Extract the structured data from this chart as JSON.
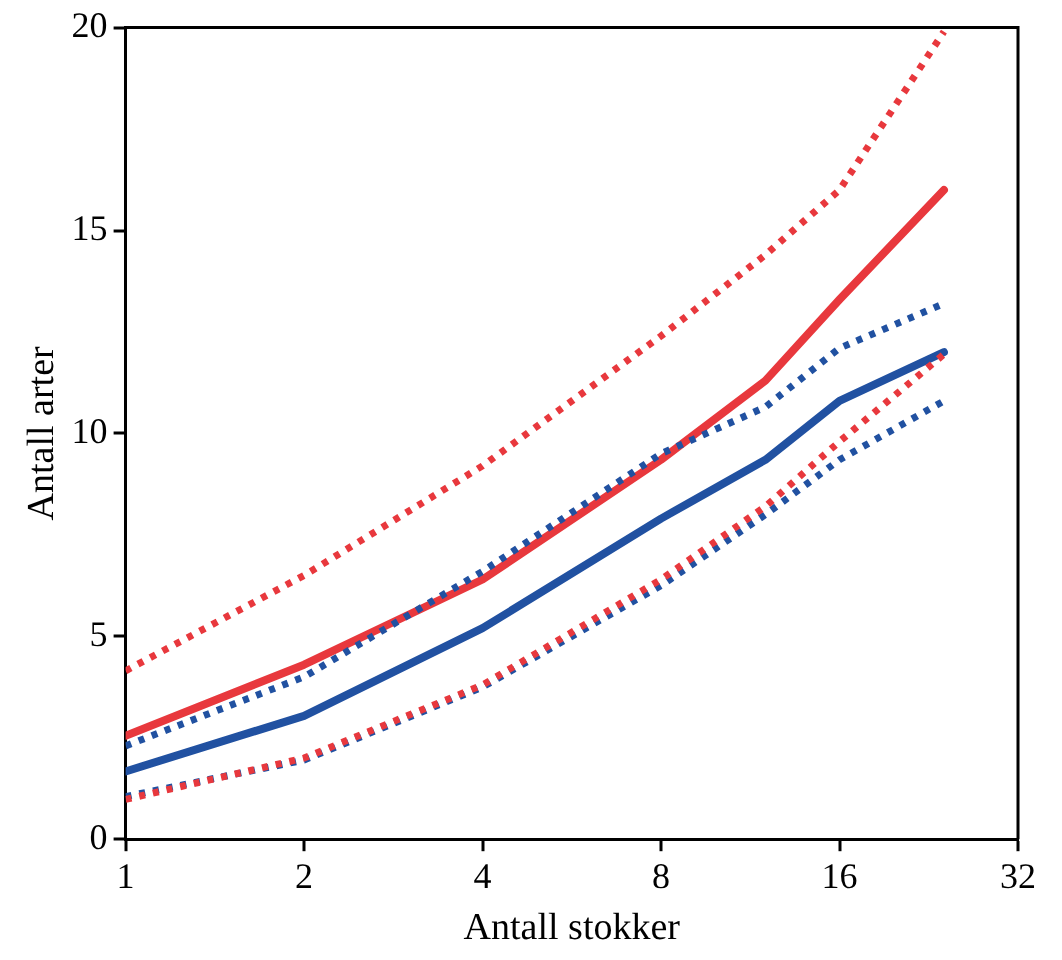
{
  "chart_data": {
    "type": "line",
    "xlabel": "Antall stokker",
    "ylabel": "Antall arter",
    "log": "x",
    "x": [
      1,
      2,
      4,
      8,
      12,
      16,
      24
    ],
    "series": [
      {
        "color": "#e8383d",
        "line_style": "dotted",
        "values": [
          4.15,
          6.5,
          9.2,
          12.4,
          14.4,
          16.0,
          19.9
        ]
      },
      {
        "color": "#2151a1",
        "line_style": "dotted",
        "values": [
          2.3,
          4.0,
          6.6,
          9.5,
          10.65,
          12.1,
          13.2
        ]
      },
      {
        "color": "#e8383d",
        "line_style": "dotted",
        "values": [
          0.98,
          2.0,
          3.8,
          6.4,
          8.2,
          9.8,
          11.95
        ]
      },
      {
        "color": "#2151a1",
        "line_style": "dotted",
        "values": [
          1.05,
          1.95,
          3.75,
          6.25,
          8.0,
          9.35,
          10.8
        ]
      },
      {
        "color": "#e8383d",
        "line_style": "solid",
        "values": [
          2.55,
          4.3,
          6.4,
          9.35,
          11.3,
          13.3,
          16.0
        ]
      },
      {
        "color": "#2151a1",
        "line_style": "solid",
        "values": [
          1.67,
          3.04,
          5.2,
          7.9,
          9.35,
          10.8,
          12.0
        ]
      }
    ],
    "xlim": [
      1,
      32
    ],
    "xticks": [
      1,
      2,
      4,
      8,
      16,
      32
    ],
    "ylim": [
      0,
      20
    ],
    "yticks": [
      0,
      5,
      10,
      15,
      20
    ],
    "grid": false,
    "legend": false,
    "marker": "none"
  }
}
